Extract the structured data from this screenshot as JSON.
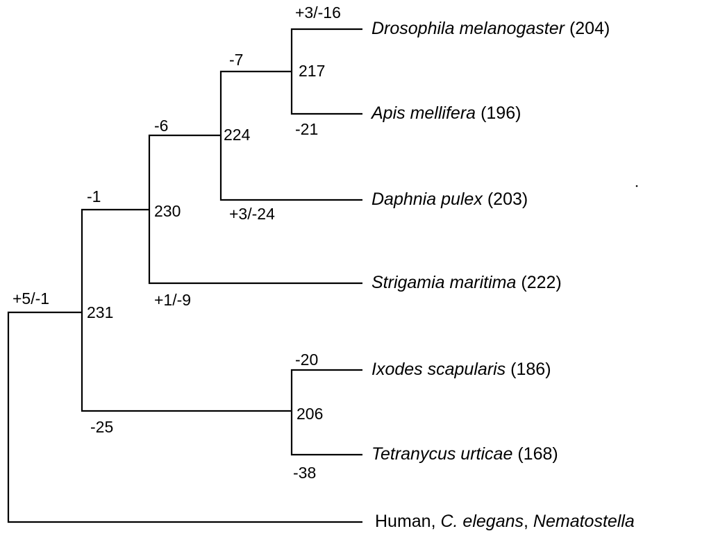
{
  "branches": [
    {
      "label": "+5/-1"
    },
    {
      "label": "-1"
    },
    {
      "label": "-6"
    },
    {
      "label": "-7"
    },
    {
      "label": "+3/-16"
    },
    {
      "label": "-21"
    },
    {
      "label": "+3/-24"
    },
    {
      "label": "+1/-9"
    },
    {
      "label": "-25"
    },
    {
      "label": "-20"
    },
    {
      "label": "-38"
    }
  ],
  "nodes": [
    {
      "label": "231"
    },
    {
      "label": "230"
    },
    {
      "label": "224"
    },
    {
      "label": "217"
    },
    {
      "label": "206"
    }
  ],
  "leaves": [
    {
      "name": [
        {
          "text": "Drosophila melanogaster",
          "italic": true
        }
      ],
      "count": "(204)"
    },
    {
      "name": [
        {
          "text": "Apis mellifera",
          "italic": true
        }
      ],
      "count": "(196)"
    },
    {
      "name": [
        {
          "text": "Daphnia pulex",
          "italic": true
        }
      ],
      "count": "(203)"
    },
    {
      "name": [
        {
          "text": "Strigamia maritima",
          "italic": true
        }
      ],
      "count": "(222)"
    },
    {
      "name": [
        {
          "text": "Ixodes scapularis",
          "italic": true
        }
      ],
      "count": "(186)"
    },
    {
      "name": [
        {
          "text": "Tetranycus urticae",
          "italic": true
        }
      ],
      "count": "(168)"
    },
    {
      "name": [
        {
          "text": "Human, ",
          "italic": false
        },
        {
          "text": "C. elegans",
          "italic": true
        },
        {
          "text": ", ",
          "italic": false
        },
        {
          "text": "Nematostella",
          "italic": true
        }
      ]
    }
  ]
}
